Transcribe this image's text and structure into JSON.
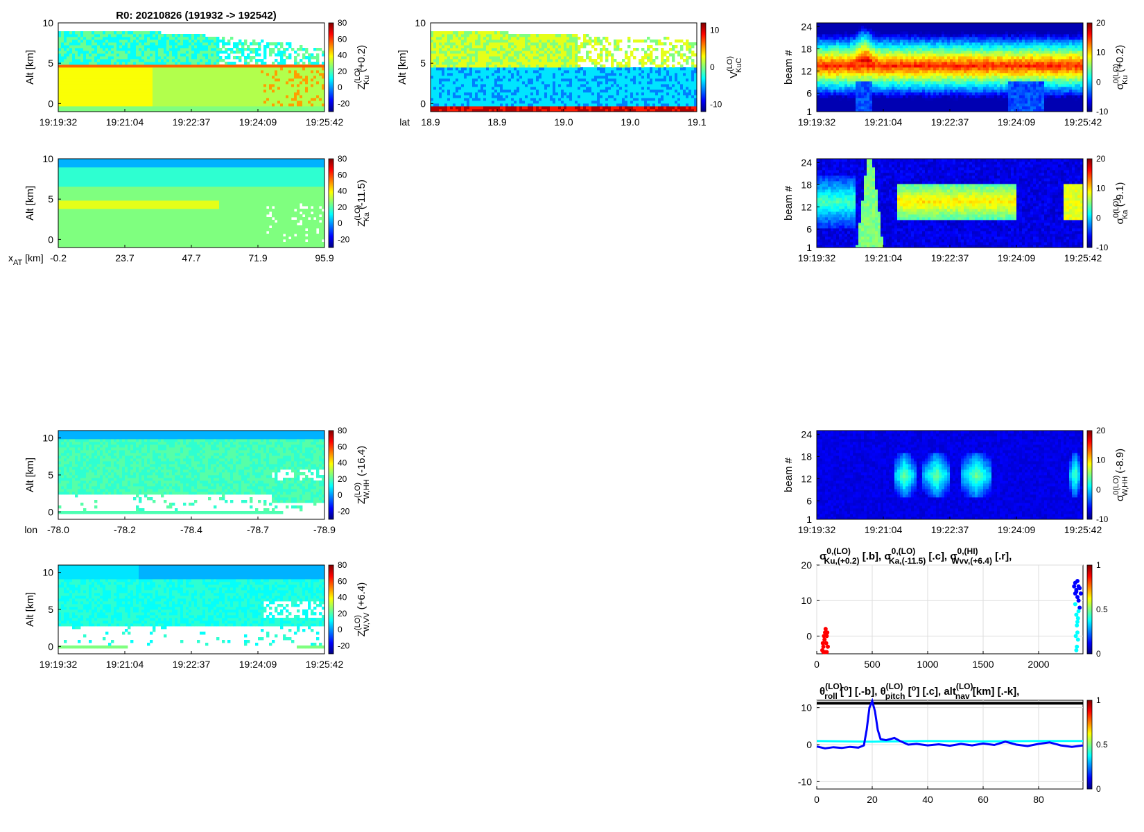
{
  "figure": {
    "title": "R0:  20210826 (191932 -> 192542)"
  },
  "colors": {
    "jet_stops": [
      "#00007f",
      "#0000ff",
      "#007fff",
      "#00ffff",
      "#7fff7f",
      "#ffff00",
      "#ff7f00",
      "#ff0000",
      "#7f0000"
    ],
    "series_b": "#0000ff",
    "series_c": "#00ffff",
    "series_r": "#ff0000",
    "series_k": "#000000"
  },
  "chart_data": [
    {
      "id": "zku",
      "type": "heatmap",
      "ylabel": "Alt [km]",
      "ylim": [
        -1,
        10
      ],
      "yticks": [
        "0",
        "5",
        "10"
      ],
      "xticks": [
        "19:19:32",
        "19:21:04",
        "19:22:37",
        "19:24:09",
        "19:25:42"
      ],
      "colorbar": {
        "ticks": [
          "80",
          "60",
          "40",
          "20",
          "0",
          "-20"
        ],
        "range": [
          -30,
          80
        ],
        "label_main": "Z",
        "label_sup": "(LO)",
        "label_sub": "Ku",
        "label_tail": " (+0.2)"
      }
    },
    {
      "id": "vkuc",
      "type": "heatmap",
      "ylabel": "Alt [km]",
      "ylim": [
        -1,
        10
      ],
      "yticks": [
        "0",
        "5",
        "10"
      ],
      "xlabel": "lat",
      "xticks": [
        "18.9",
        "18.9",
        "19.0",
        "19.0",
        "19.1"
      ],
      "colorbar": {
        "ticks": [
          "10",
          "0",
          "-10"
        ],
        "range": [
          -12,
          12
        ],
        "label_main": "V",
        "label_sup": "(LO)",
        "label_sub": "KuC",
        "label_tail": ""
      }
    },
    {
      "id": "sku",
      "type": "heatmap",
      "ylabel": "beam #",
      "ylim": [
        1,
        25
      ],
      "yticks": [
        "1",
        "6",
        "12",
        "18",
        "24"
      ],
      "xticks": [
        "19:19:32",
        "19:21:04",
        "19:22:37",
        "19:24:09",
        "19:25:42"
      ],
      "colorbar": {
        "ticks": [
          "20",
          "10",
          "0",
          "-10"
        ],
        "range": [
          -10,
          20
        ],
        "label_main": "σ",
        "label_sup": "0(LO)",
        "label_sub": "Ku",
        "label_tail": " (+0.2)"
      }
    },
    {
      "id": "zka",
      "type": "heatmap",
      "ylabel": "Alt [km]",
      "ylim": [
        -1,
        10
      ],
      "yticks": [
        "0",
        "5",
        "10"
      ],
      "xlabel_main": "x",
      "xlabel_sub": "AT",
      "xlabel_tail": " [km]",
      "xticks": [
        "-0.2",
        "23.7",
        "47.7",
        "71.9",
        "95.9"
      ],
      "colorbar": {
        "ticks": [
          "80",
          "60",
          "40",
          "20",
          "0",
          "-20"
        ],
        "range": [
          -30,
          80
        ],
        "label_main": "Z",
        "label_sup": "(LO)",
        "label_sub": "Ka",
        "label_tail": " (-11.5)"
      }
    },
    {
      "id": "ska",
      "type": "heatmap",
      "ylabel": "beam #",
      "ylim": [
        1,
        25
      ],
      "yticks": [
        "1",
        "6",
        "12",
        "18",
        "24"
      ],
      "xticks": [
        "19:19:32",
        "19:21:04",
        "19:22:37",
        "19:24:09",
        "19:25:42"
      ],
      "colorbar": {
        "ticks": [
          "20",
          "10",
          "0",
          "-10"
        ],
        "range": [
          -10,
          20
        ],
        "label_main": "σ",
        "label_sup": "0(LO)",
        "label_sub": "Ka",
        "label_tail": " (-9.1)"
      }
    },
    {
      "id": "zwhh",
      "type": "heatmap",
      "ylabel": "Alt [km]",
      "ylim": [
        -1,
        11
      ],
      "yticks": [
        "0",
        "5",
        "10"
      ],
      "xlabel": "lon",
      "xticks": [
        "-78.0",
        "-78.2",
        "-78.4",
        "-78.7",
        "-78.9"
      ],
      "colorbar": {
        "ticks": [
          "80",
          "60",
          "40",
          "20",
          "0",
          "-20"
        ],
        "range": [
          -30,
          80
        ],
        "label_main": "Z",
        "label_sup": "(LO)",
        "label_sub": "W,HH",
        "label_tail": " (-16.4)"
      }
    },
    {
      "id": "swhh",
      "type": "heatmap",
      "ylabel": "beam #",
      "ylim": [
        1,
        25
      ],
      "yticks": [
        "1",
        "6",
        "12",
        "18",
        "24"
      ],
      "xticks": [
        "19:19:32",
        "19:21:04",
        "19:22:37",
        "19:24:09",
        "19:25:42"
      ],
      "colorbar": {
        "ticks": [
          "20",
          "10",
          "0",
          "-10"
        ],
        "range": [
          -10,
          20
        ],
        "label_main": "σ",
        "label_sup": "0(LO)",
        "label_sub": "W,HH",
        "label_tail": " (-8.9)"
      }
    },
    {
      "id": "zwvv",
      "type": "heatmap",
      "ylabel": "Alt [km]",
      "ylim": [
        -1,
        11
      ],
      "yticks": [
        "0",
        "5",
        "10"
      ],
      "xticks": [
        "19:19:32",
        "19:21:04",
        "19:22:37",
        "19:24:09",
        "19:25:42"
      ],
      "colorbar": {
        "ticks": [
          "80",
          "60",
          "40",
          "20",
          "0",
          "-20"
        ],
        "range": [
          -30,
          80
        ],
        "label_main": "Z",
        "label_sup": "(LO)",
        "label_sub": "W,VV",
        "label_tail": " (+6.4)"
      }
    },
    {
      "id": "sigma_scatter",
      "type": "scatter",
      "title_parts": [
        {
          "main": "σ",
          "sup": "0,(LO)",
          "sub": "Ku,(+0.2)",
          "tail": " [.b],  "
        },
        {
          "main": "σ",
          "sup": "0,(LO)",
          "sub": "Ka,(-11.5)",
          "tail": " [.c],  "
        },
        {
          "main": "σ",
          "sup": "0,(HI)",
          "sub": "Wvv,(+6.4)",
          "tail": " [.r],"
        }
      ],
      "xlim": [
        0,
        2400
      ],
      "ylim": [
        -5,
        20
      ],
      "xticks": [
        "0",
        "500",
        "1000",
        "1500",
        "2000"
      ],
      "xtick_values": [
        0,
        500,
        1000,
        1500,
        2000
      ],
      "yticks": [
        "0",
        "10",
        "20"
      ],
      "ytick_values": [
        0,
        10,
        20
      ],
      "grid": true,
      "colorbar": {
        "ticks": [
          "1",
          "0.5",
          "0"
        ]
      },
      "series": [
        {
          "color": "#ff0000",
          "points": [
            [
              50,
              -4
            ],
            [
              55,
              -2
            ],
            [
              60,
              -3
            ],
            [
              65,
              0
            ],
            [
              70,
              -1
            ],
            [
              75,
              1
            ],
            [
              80,
              2
            ],
            [
              85,
              -2
            ],
            [
              90,
              0
            ],
            [
              95,
              1
            ],
            [
              100,
              -3
            ],
            [
              60,
              -4.5
            ],
            [
              75,
              -4.5
            ],
            [
              90,
              -4.5
            ]
          ]
        },
        {
          "color": "#0000ff",
          "points": [
            [
              2320,
              14
            ],
            [
              2330,
              15
            ],
            [
              2340,
              13
            ],
            [
              2350,
              15.5
            ],
            [
              2360,
              14
            ],
            [
              2370,
              13.5
            ],
            [
              2380,
              12
            ],
            [
              2350,
              11
            ],
            [
              2360,
              10
            ],
            [
              2340,
              12.5
            ],
            [
              2330,
              12
            ],
            [
              2370,
              8
            ]
          ]
        },
        {
          "color": "#00ffff",
          "points": [
            [
              2330,
              9
            ],
            [
              2340,
              6
            ],
            [
              2345,
              3
            ],
            [
              2350,
              1
            ],
            [
              2355,
              -1
            ],
            [
              2345,
              -3
            ],
            [
              2340,
              -4
            ],
            [
              2350,
              4
            ],
            [
              2360,
              7
            ],
            [
              2335,
              0
            ],
            [
              2355,
              5
            ]
          ]
        }
      ]
    },
    {
      "id": "attitude",
      "type": "line",
      "title_parts": [
        {
          "main": "θ",
          "sup": "(LO)",
          "sub": "roll",
          "tail": " [",
          "deg": "o",
          "tail2": "] [.-b],  "
        },
        {
          "main": "θ",
          "sup": "(LO)",
          "sub": "pitch",
          "tail": " [",
          "deg": "o",
          "tail2": "] [.c],  "
        },
        {
          "main": "alt",
          "sup": "(LO)",
          "sub": "nav",
          "tail": " [km] [.-k],",
          "deg": "",
          "tail2": ""
        }
      ],
      "xlim": [
        0,
        96
      ],
      "ylim": [
        -12,
        12
      ],
      "xticks": [
        "0",
        "20",
        "40",
        "60",
        "80"
      ],
      "xtick_values": [
        0,
        20,
        40,
        60,
        80
      ],
      "yticks": [
        "-10",
        "0",
        "10"
      ],
      "ytick_values": [
        -10,
        0,
        10
      ],
      "grid": true,
      "colorbar": {
        "ticks": [
          "1",
          "0.5",
          "0"
        ]
      },
      "series": [
        {
          "color": "#000000",
          "points": [
            [
              0,
              11.2
            ],
            [
              96,
              11.2
            ]
          ]
        },
        {
          "color": "#00ffff",
          "points": [
            [
              0,
              1
            ],
            [
              20,
              0.8
            ],
            [
              40,
              1
            ],
            [
              60,
              0.9
            ],
            [
              80,
              1
            ],
            [
              96,
              1
            ]
          ]
        },
        {
          "color": "#0000ff",
          "points": [
            [
              0,
              -0.5
            ],
            [
              3,
              -1
            ],
            [
              6,
              -0.7
            ],
            [
              9,
              -0.9
            ],
            [
              12,
              -0.6
            ],
            [
              15,
              -0.8
            ],
            [
              17,
              -0.2
            ],
            [
              18,
              4
            ],
            [
              19,
              10
            ],
            [
              20,
              11.8
            ],
            [
              21,
              9
            ],
            [
              22,
              4
            ],
            [
              23,
              1.5
            ],
            [
              25,
              1.2
            ],
            [
              28,
              1.8
            ],
            [
              30,
              1
            ],
            [
              33,
              0
            ],
            [
              36,
              0.2
            ],
            [
              40,
              -0.2
            ],
            [
              44,
              0.1
            ],
            [
              48,
              -0.3
            ],
            [
              52,
              0.2
            ],
            [
              56,
              -0.2
            ],
            [
              60,
              0.3
            ],
            [
              64,
              -0.1
            ],
            [
              68,
              0.8
            ],
            [
              72,
              0
            ],
            [
              76,
              -0.4
            ],
            [
              80,
              0.2
            ],
            [
              84,
              0.6
            ],
            [
              88,
              -0.2
            ],
            [
              92,
              -0.6
            ],
            [
              96,
              -0.2
            ]
          ]
        }
      ]
    }
  ]
}
